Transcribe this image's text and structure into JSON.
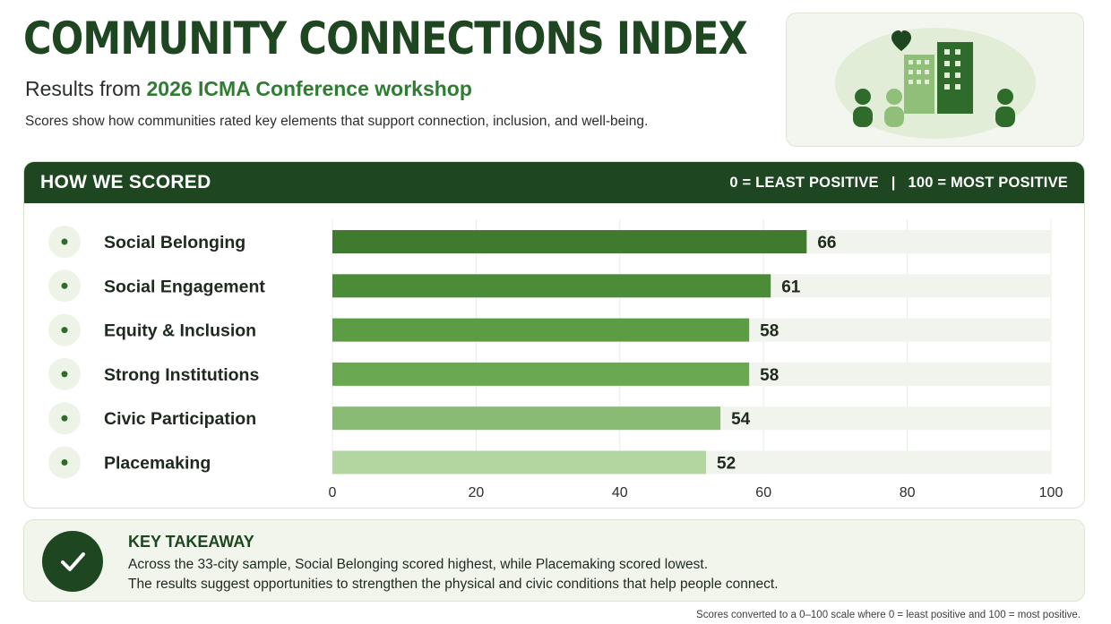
{
  "header": {
    "title": "COMMUNITY CONNECTIONS INDEX",
    "subtitle_prefix": "Results from ",
    "subtitle_highlight": "2026 ICMA Conference workshop",
    "description": "Scores show how communities rated key elements that support connection, inclusion, and well-being."
  },
  "hero_icons": [
    "heart-icon",
    "building-icon",
    "person-icon"
  ],
  "panel": {
    "heading": "HOW WE SCORED",
    "scale_low": "0 = LEAST POSITIVE",
    "scale_sep": "|",
    "scale_high": "100 = MOST POSITIVE"
  },
  "chart_data": {
    "type": "bar",
    "orientation": "horizontal",
    "categories": [
      "Social Belonging",
      "Social Engagement",
      "Equity & Inclusion",
      "Strong Institutions",
      "Civic Participation",
      "Placemaking"
    ],
    "values": [
      66,
      61,
      58,
      58,
      54,
      52
    ],
    "data_labels": [
      "66",
      "61",
      "58",
      "58",
      "54",
      "52"
    ],
    "xlim": [
      0,
      100
    ],
    "x_ticks": [
      0,
      20,
      40,
      60,
      80,
      100
    ],
    "x_tick_labels": [
      "0",
      "20",
      "40",
      "60",
      "80",
      "100"
    ],
    "grid": true,
    "bar_colors": [
      "#3f7a2e",
      "#4b8c38",
      "#5c9c45",
      "#6aa852",
      "#89bb74",
      "#b3d59f"
    ],
    "track_color": "#f1f4ec"
  },
  "takeaway": {
    "title": "KEY TAKEAWAY",
    "line1": "Across the 33-city sample, Social Belonging scored highest, while Placemaking scored lowest.",
    "line2": "The results suggest opportunities to strengthen the physical and civic conditions that help people connect."
  },
  "footnote": "Scores converted to a 0–100 scale where 0 = least positive and 100 = most positive."
}
